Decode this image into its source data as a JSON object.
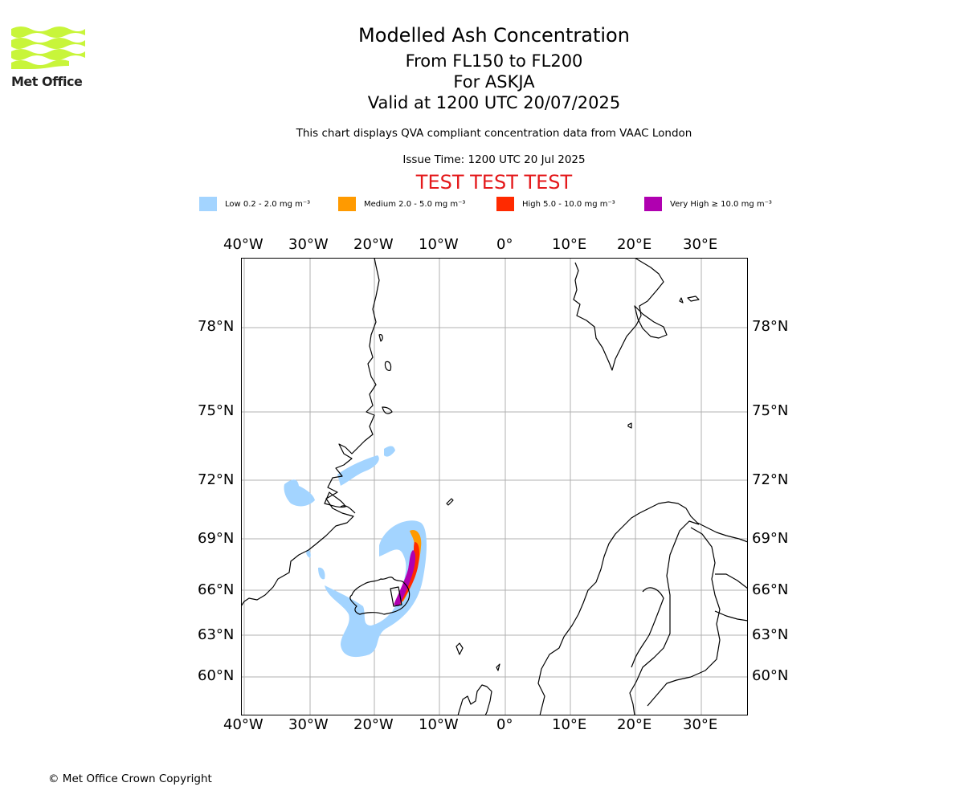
{
  "logo": {
    "text": "Met Office",
    "icon": "met-office-waves-logo"
  },
  "header": {
    "title": "Modelled Ash Concentration",
    "levels": "From FL150 to FL200",
    "volcano": "For ASKJA",
    "valid": "Valid at 1200 UTC 20/07/2025",
    "description": "This chart displays QVA compliant concentration data from VAAC London",
    "issue_time": "Issue Time: 1200 UTC 20 Jul 2025",
    "test_banner": "TEST TEST TEST"
  },
  "legend": [
    {
      "label": "Low 0.2 - 2.0 mg m⁻³",
      "color": "#a3d4ff"
    },
    {
      "label": "Medium 2.0 - 5.0 mg m⁻³",
      "color": "#ff9a00"
    },
    {
      "label": "High 5.0 - 10.0 mg m⁻³",
      "color": "#ff2a00"
    },
    {
      "label": "Very High  ≥  10.0 mg m⁻³",
      "color": "#b000b0"
    }
  ],
  "map": {
    "longitudes": [
      "40°W",
      "30°W",
      "20°W",
      "10°W",
      "0°",
      "10°E",
      "20°E",
      "30°E"
    ],
    "latitudes": [
      "78°N",
      "75°N",
      "72°N",
      "69°N",
      "66°N",
      "63°N",
      "60°N"
    ],
    "colors": {
      "grid": "#b0b0b0",
      "coast": "#000000"
    }
  },
  "footer": {
    "copyright": "© Met Office Crown Copyright"
  }
}
